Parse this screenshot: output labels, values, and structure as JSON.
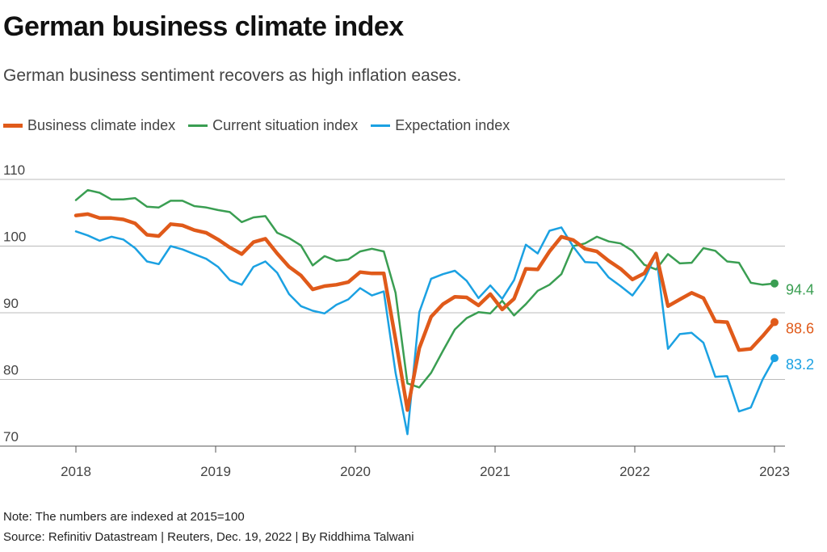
{
  "header": {
    "title": "German business climate index",
    "subtitle": "German business sentiment recovers as high inflation eases."
  },
  "footer": {
    "note": "Note: The numbers are indexed at 2015=100",
    "source": "Source: Refinitiv Datastream | Reuters, Dec. 19, 2022 | By Riddhima Talwani"
  },
  "chart_data": {
    "type": "line",
    "title": "German business climate index",
    "subtitle": "German business sentiment recovers as high inflation eases.",
    "xlabel": "",
    "ylabel": "",
    "ylim": [
      70,
      110
    ],
    "yticks": [
      70,
      80,
      90,
      100,
      110
    ],
    "xticks": [
      2018,
      2019,
      2020,
      2021,
      2022,
      2023
    ],
    "xlim": [
      2018,
      2023
    ],
    "grid": "horizontal",
    "legend_position": "top-left",
    "x_start": "2018-01",
    "x_end": "2022-12",
    "x": [
      "2018-01",
      "2018-02",
      "2018-03",
      "2018-04",
      "2018-05",
      "2018-06",
      "2018-07",
      "2018-08",
      "2018-09",
      "2018-10",
      "2018-11",
      "2018-12",
      "2019-01",
      "2019-02",
      "2019-03",
      "2019-04",
      "2019-05",
      "2019-06",
      "2019-07",
      "2019-08",
      "2019-09",
      "2019-10",
      "2019-11",
      "2019-12",
      "2020-01",
      "2020-02",
      "2020-03",
      "2020-04",
      "2020-05",
      "2020-06",
      "2020-07",
      "2020-08",
      "2020-09",
      "2020-10",
      "2020-11",
      "2020-12",
      "2021-01",
      "2021-02",
      "2021-03",
      "2021-04",
      "2021-05",
      "2021-06",
      "2021-07",
      "2021-08",
      "2021-09",
      "2021-10",
      "2021-11",
      "2021-12",
      "2022-01",
      "2022-02",
      "2022-03",
      "2022-04",
      "2022-05",
      "2022-06",
      "2022-07",
      "2022-08",
      "2022-09",
      "2022-10",
      "2022-11",
      "2022-12"
    ],
    "series": [
      {
        "name": "Business climate index",
        "color": "#e05a1a",
        "width": 4.5,
        "end_label": "88.6",
        "values": [
          104.6,
          104.8,
          104.2,
          104.2,
          104.0,
          103.4,
          101.7,
          101.5,
          103.3,
          103.1,
          102.4,
          102.0,
          101.0,
          99.8,
          98.8,
          100.6,
          101.1,
          98.9,
          96.9,
          95.6,
          93.5,
          94.0,
          94.2,
          94.6,
          96.1,
          95.9,
          95.9,
          86.0,
          75.4,
          84.7,
          89.4,
          91.3,
          92.4,
          92.3,
          91.1,
          92.8,
          90.5,
          92.1,
          96.6,
          96.5,
          99.2,
          101.4,
          100.9,
          99.6,
          99.2,
          97.8,
          96.6,
          95.0,
          95.9,
          98.9,
          91.0,
          92.0,
          93.0,
          92.2,
          88.7,
          88.6,
          84.4,
          84.6,
          86.5,
          88.6
        ]
      },
      {
        "name": "Current situation index",
        "color": "#3a9e52",
        "width": 2.5,
        "end_label": "94.4",
        "values": [
          106.9,
          108.4,
          108.0,
          107.0,
          107.0,
          107.2,
          105.9,
          105.8,
          106.8,
          106.8,
          106.0,
          105.8,
          105.4,
          105.1,
          103.6,
          104.3,
          104.5,
          102.0,
          101.2,
          100.1,
          97.1,
          98.5,
          97.8,
          98.0,
          99.2,
          99.6,
          99.2,
          93.0,
          79.4,
          78.8,
          81.0,
          84.3,
          87.5,
          89.2,
          90.1,
          89.9,
          91.8,
          89.6,
          91.3,
          93.3,
          94.2,
          95.8,
          100.0,
          100.4,
          101.4,
          100.7,
          100.4,
          99.3,
          97.2,
          96.5,
          98.8,
          97.4,
          97.5,
          99.7,
          99.3,
          97.7,
          97.5,
          94.5,
          94.2,
          94.4
        ]
      },
      {
        "name": "Expectation index",
        "color": "#1ba1e2",
        "width": 2.5,
        "end_label": "83.2",
        "values": [
          102.2,
          101.6,
          100.8,
          101.4,
          101.0,
          99.7,
          97.7,
          97.3,
          100.0,
          99.5,
          98.8,
          98.1,
          96.9,
          94.9,
          94.2,
          96.9,
          97.7,
          96.0,
          92.8,
          91.0,
          90.3,
          89.9,
          91.2,
          92.0,
          93.7,
          92.6,
          93.2,
          81.0,
          71.8,
          90.1,
          95.1,
          95.8,
          96.3,
          94.8,
          92.2,
          94.1,
          92.1,
          94.9,
          100.2,
          98.9,
          102.3,
          102.8,
          99.9,
          97.6,
          97.5,
          95.3,
          94.0,
          92.6,
          95.0,
          98.8,
          84.6,
          86.8,
          87.0,
          85.5,
          80.4,
          80.5,
          75.2,
          75.8,
          80.0,
          83.2
        ]
      }
    ]
  }
}
